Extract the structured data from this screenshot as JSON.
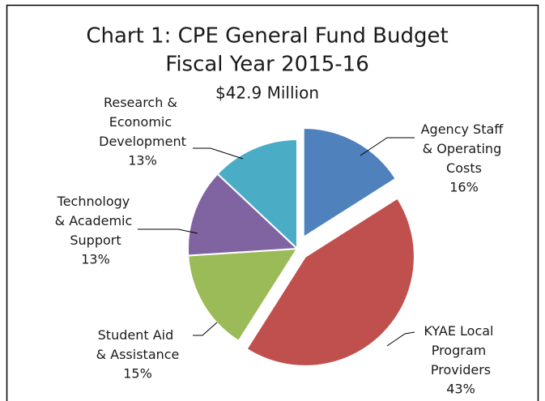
{
  "chart_data": {
    "type": "pie",
    "title": [
      "Chart 1: CPE General Fund Budget",
      "Fiscal Year 2015-16"
    ],
    "subtitle": "$42.9 Million",
    "categories": [
      "Agency Staff & Operating Costs",
      "KYAE Local Program Providers",
      "Student Aid & Assistance",
      "Technology & Academic Support",
      "Research & Economic Development"
    ],
    "values": [
      16,
      43,
      15,
      13,
      13
    ],
    "value_labels": [
      "16%",
      "43%",
      "15%",
      "13%",
      "13%"
    ],
    "colors": [
      "#4f81bd",
      "#c0504d",
      "#9bbb59",
      "#8064a2",
      "#4bacc6"
    ]
  }
}
